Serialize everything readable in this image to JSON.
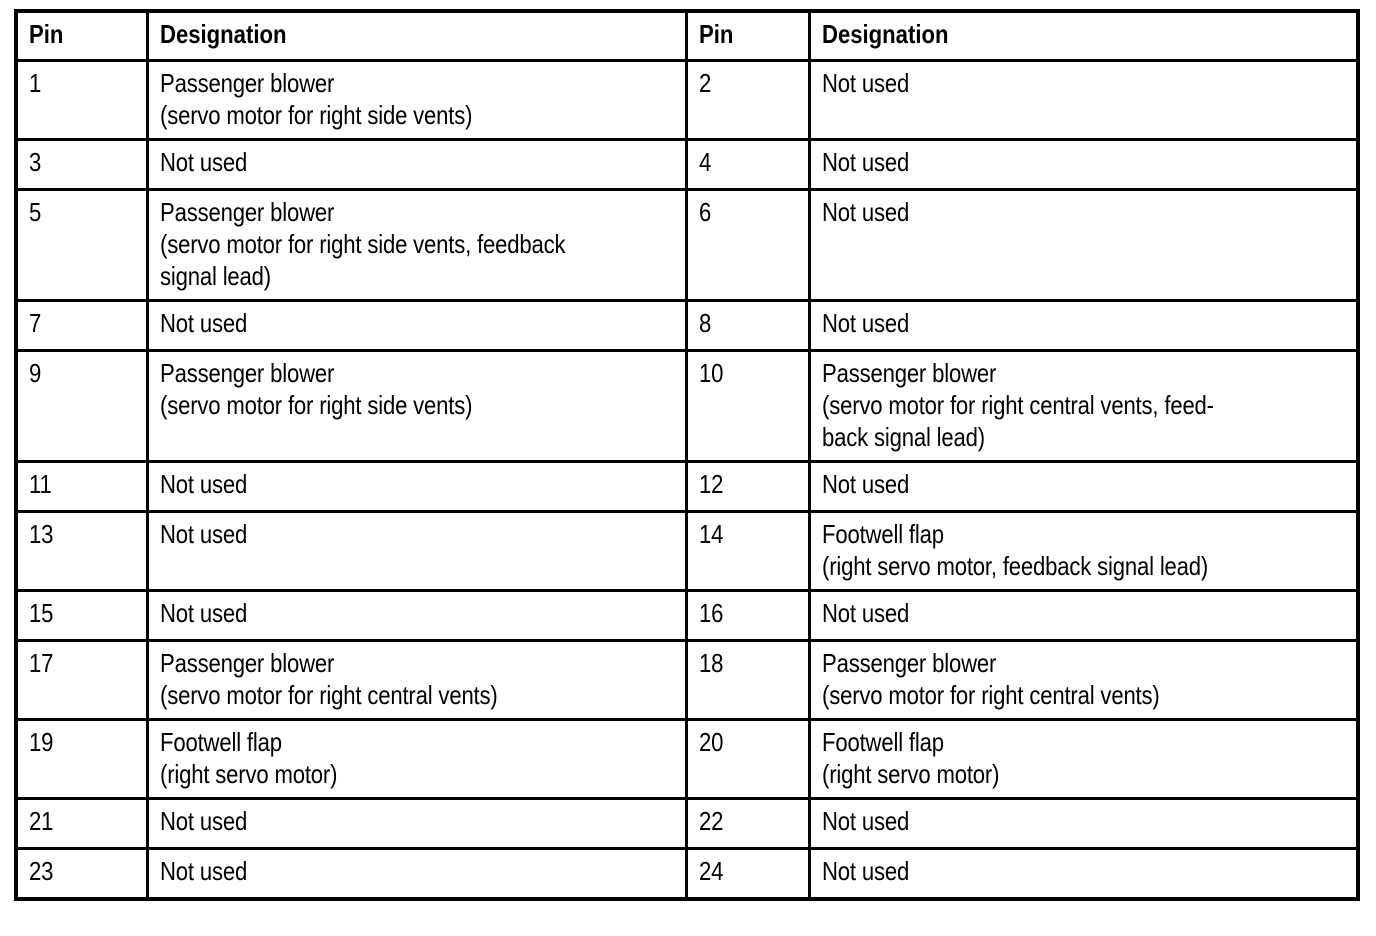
{
  "document": {
    "colors": {
      "border": "#000000",
      "text": "#000000",
      "background": "#ffffff"
    },
    "table": {
      "header": {
        "pin_left": "Pin",
        "designation_left": "Designation",
        "pin_right": "Pin",
        "designation_right": "Designation"
      },
      "rows": [
        {
          "pin_left": "1",
          "designation_left": "Passenger blower\n(servo motor for right side vents)",
          "pin_right": "2",
          "designation_right": "Not used"
        },
        {
          "pin_left": "3",
          "designation_left": "Not used",
          "pin_right": "4",
          "designation_right": "Not used"
        },
        {
          "pin_left": "5",
          "designation_left": "Passenger blower\n(servo motor for right side vents, feedback\nsignal lead)",
          "pin_right": "6",
          "designation_right": "Not used"
        },
        {
          "pin_left": "7",
          "designation_left": "Not used",
          "pin_right": "8",
          "designation_right": "Not used"
        },
        {
          "pin_left": "9",
          "designation_left": "Passenger blower\n(servo motor for right side vents)",
          "pin_right": "10",
          "designation_right": "Passenger blower\n(servo motor for right central vents, feed-\nback signal lead)"
        },
        {
          "pin_left": "11",
          "designation_left": "Not used",
          "pin_right": "12",
          "designation_right": "Not used"
        },
        {
          "pin_left": "13",
          "designation_left": "Not used",
          "pin_right": "14",
          "designation_right": "Footwell flap\n(right servo motor, feedback signal lead)"
        },
        {
          "pin_left": "15",
          "designation_left": "Not used",
          "pin_right": "16",
          "designation_right": "Not used"
        },
        {
          "pin_left": "17",
          "designation_left": "Passenger blower\n(servo motor for right central vents)",
          "pin_right": "18",
          "designation_right": "Passenger blower\n(servo motor for right central vents)"
        },
        {
          "pin_left": "19",
          "designation_left": "Footwell flap\n(right servo motor)",
          "pin_right": "20",
          "designation_right": "Footwell flap\n(right servo motor)"
        },
        {
          "pin_left": "21",
          "designation_left": "Not used",
          "pin_right": "22",
          "designation_right": "Not used"
        },
        {
          "pin_left": "23",
          "designation_left": "Not used",
          "pin_right": "24",
          "designation_right": "Not used"
        }
      ]
    }
  }
}
